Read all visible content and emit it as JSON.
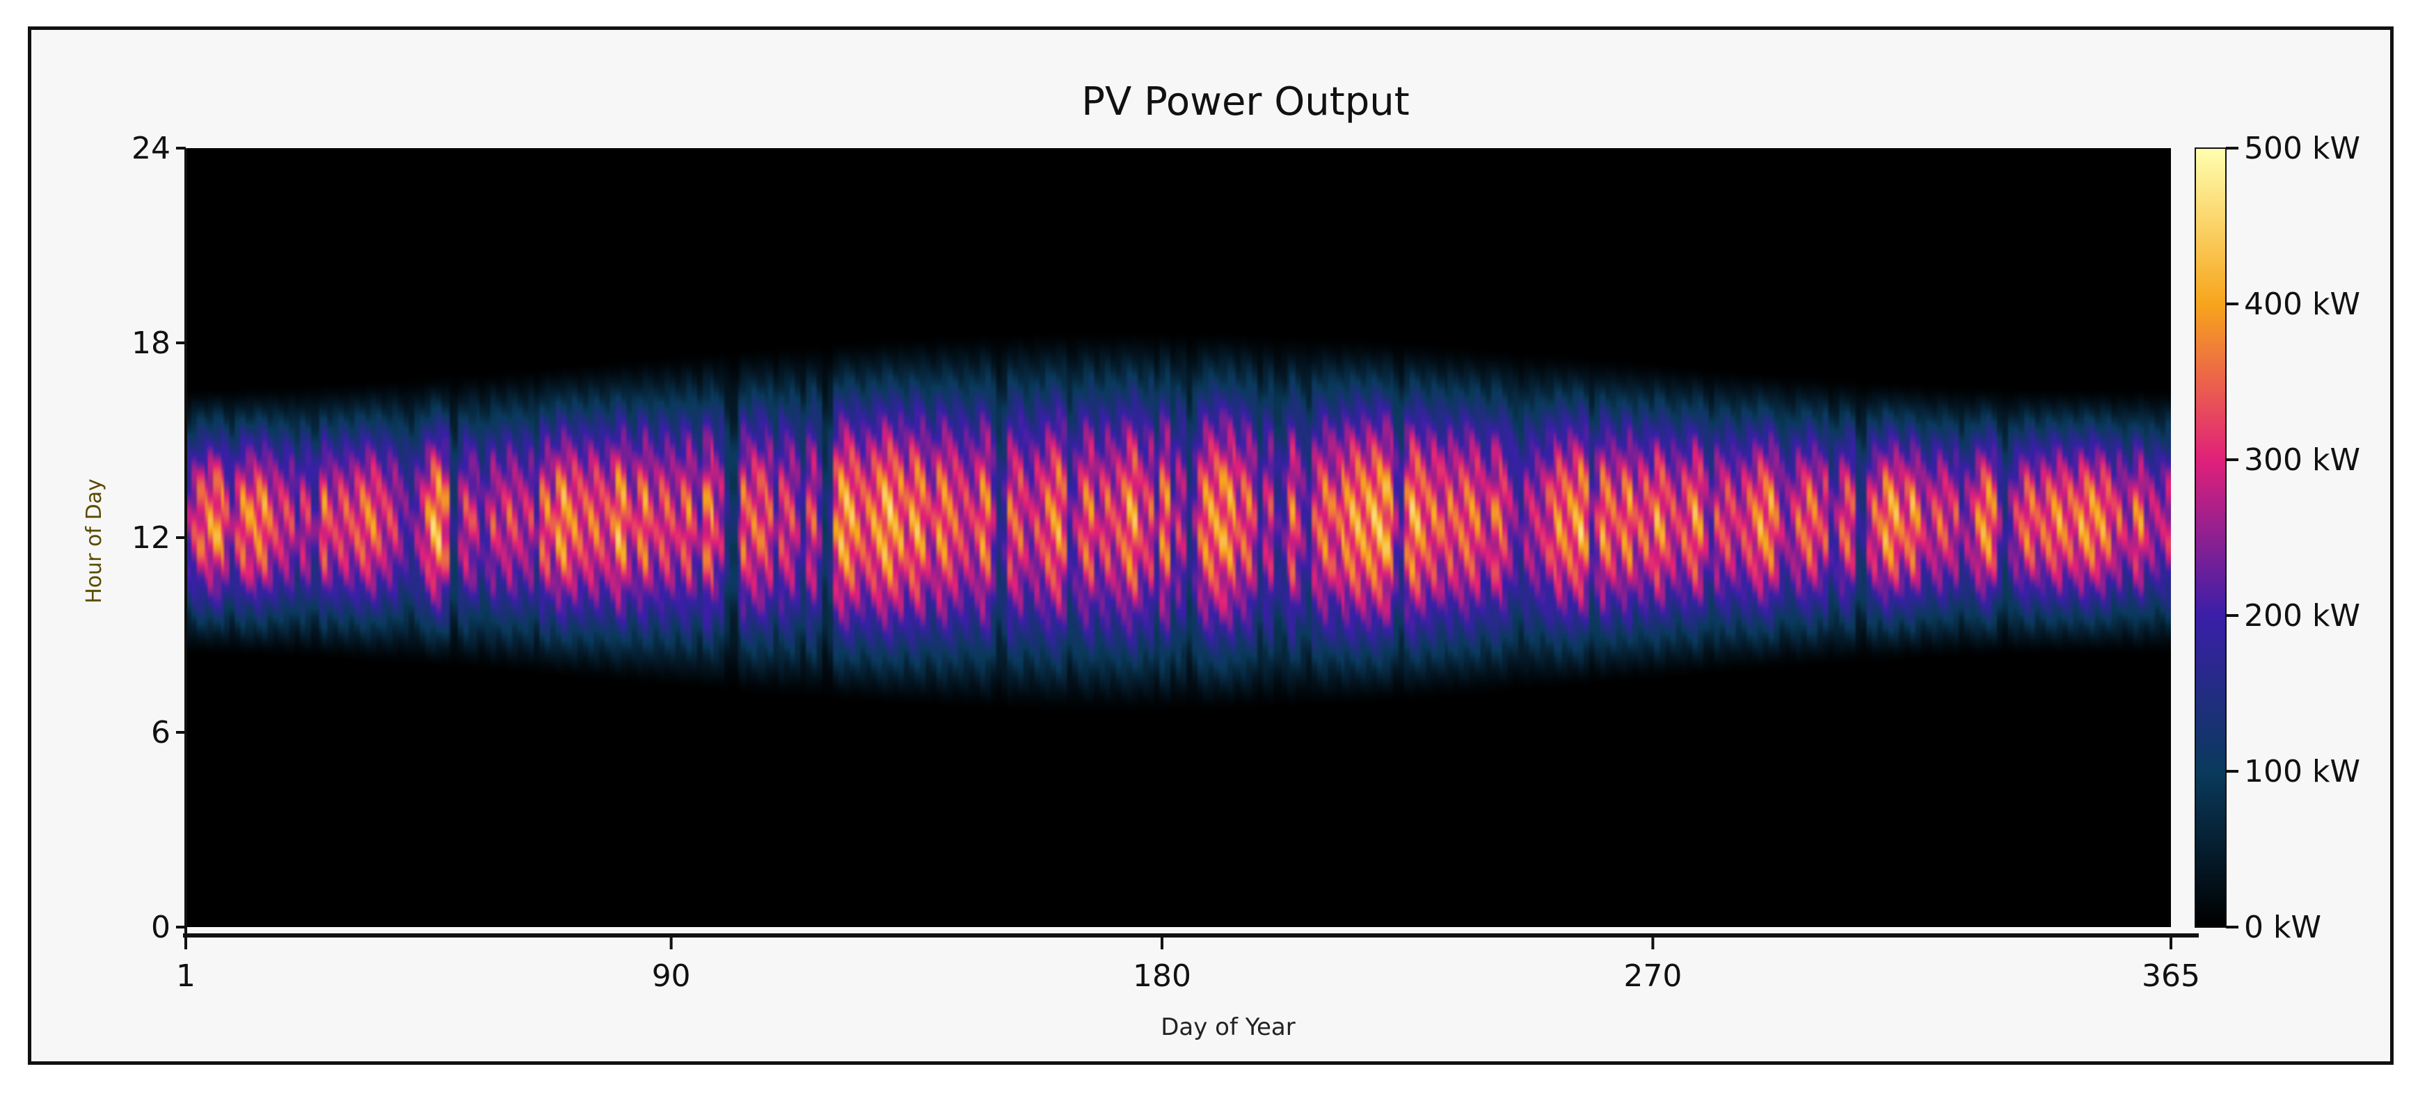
{
  "chart_data": {
    "type": "heatmap",
    "title": "PV Power Output",
    "xlabel": "Day of Year",
    "ylabel": "Hour of Day",
    "xlim": [
      1,
      365
    ],
    "ylim": [
      0,
      24
    ],
    "x_ticks": [
      "1",
      "90",
      "180",
      "270",
      "365"
    ],
    "x_tick_values": [
      1,
      90,
      180,
      270,
      365
    ],
    "y_ticks": [
      "0",
      "6",
      "12",
      "18",
      "24"
    ],
    "y_tick_values": [
      0,
      6,
      12,
      18,
      24
    ],
    "colorbar": {
      "unit": "kW",
      "range": [
        0,
        500
      ],
      "ticks": [
        "0 kW",
        "100 kW",
        "200 kW",
        "300 kW",
        "400 kW",
        "500 kW"
      ],
      "tick_values": [
        0,
        100,
        200,
        300,
        400,
        500
      ],
      "colors": [
        "#000000",
        "#0a3a5c",
        "#3a1fa8",
        "#e0207a",
        "#f7a51c",
        "#ffffb0"
      ]
    },
    "profile": {
      "sunrise_hour_range": [
        6.5,
        8.5
      ],
      "sunset_hour_range": [
        16.5,
        18.5
      ],
      "peak_hour": 12.5,
      "peak_value_range_kw": [
        300,
        500
      ]
    }
  }
}
